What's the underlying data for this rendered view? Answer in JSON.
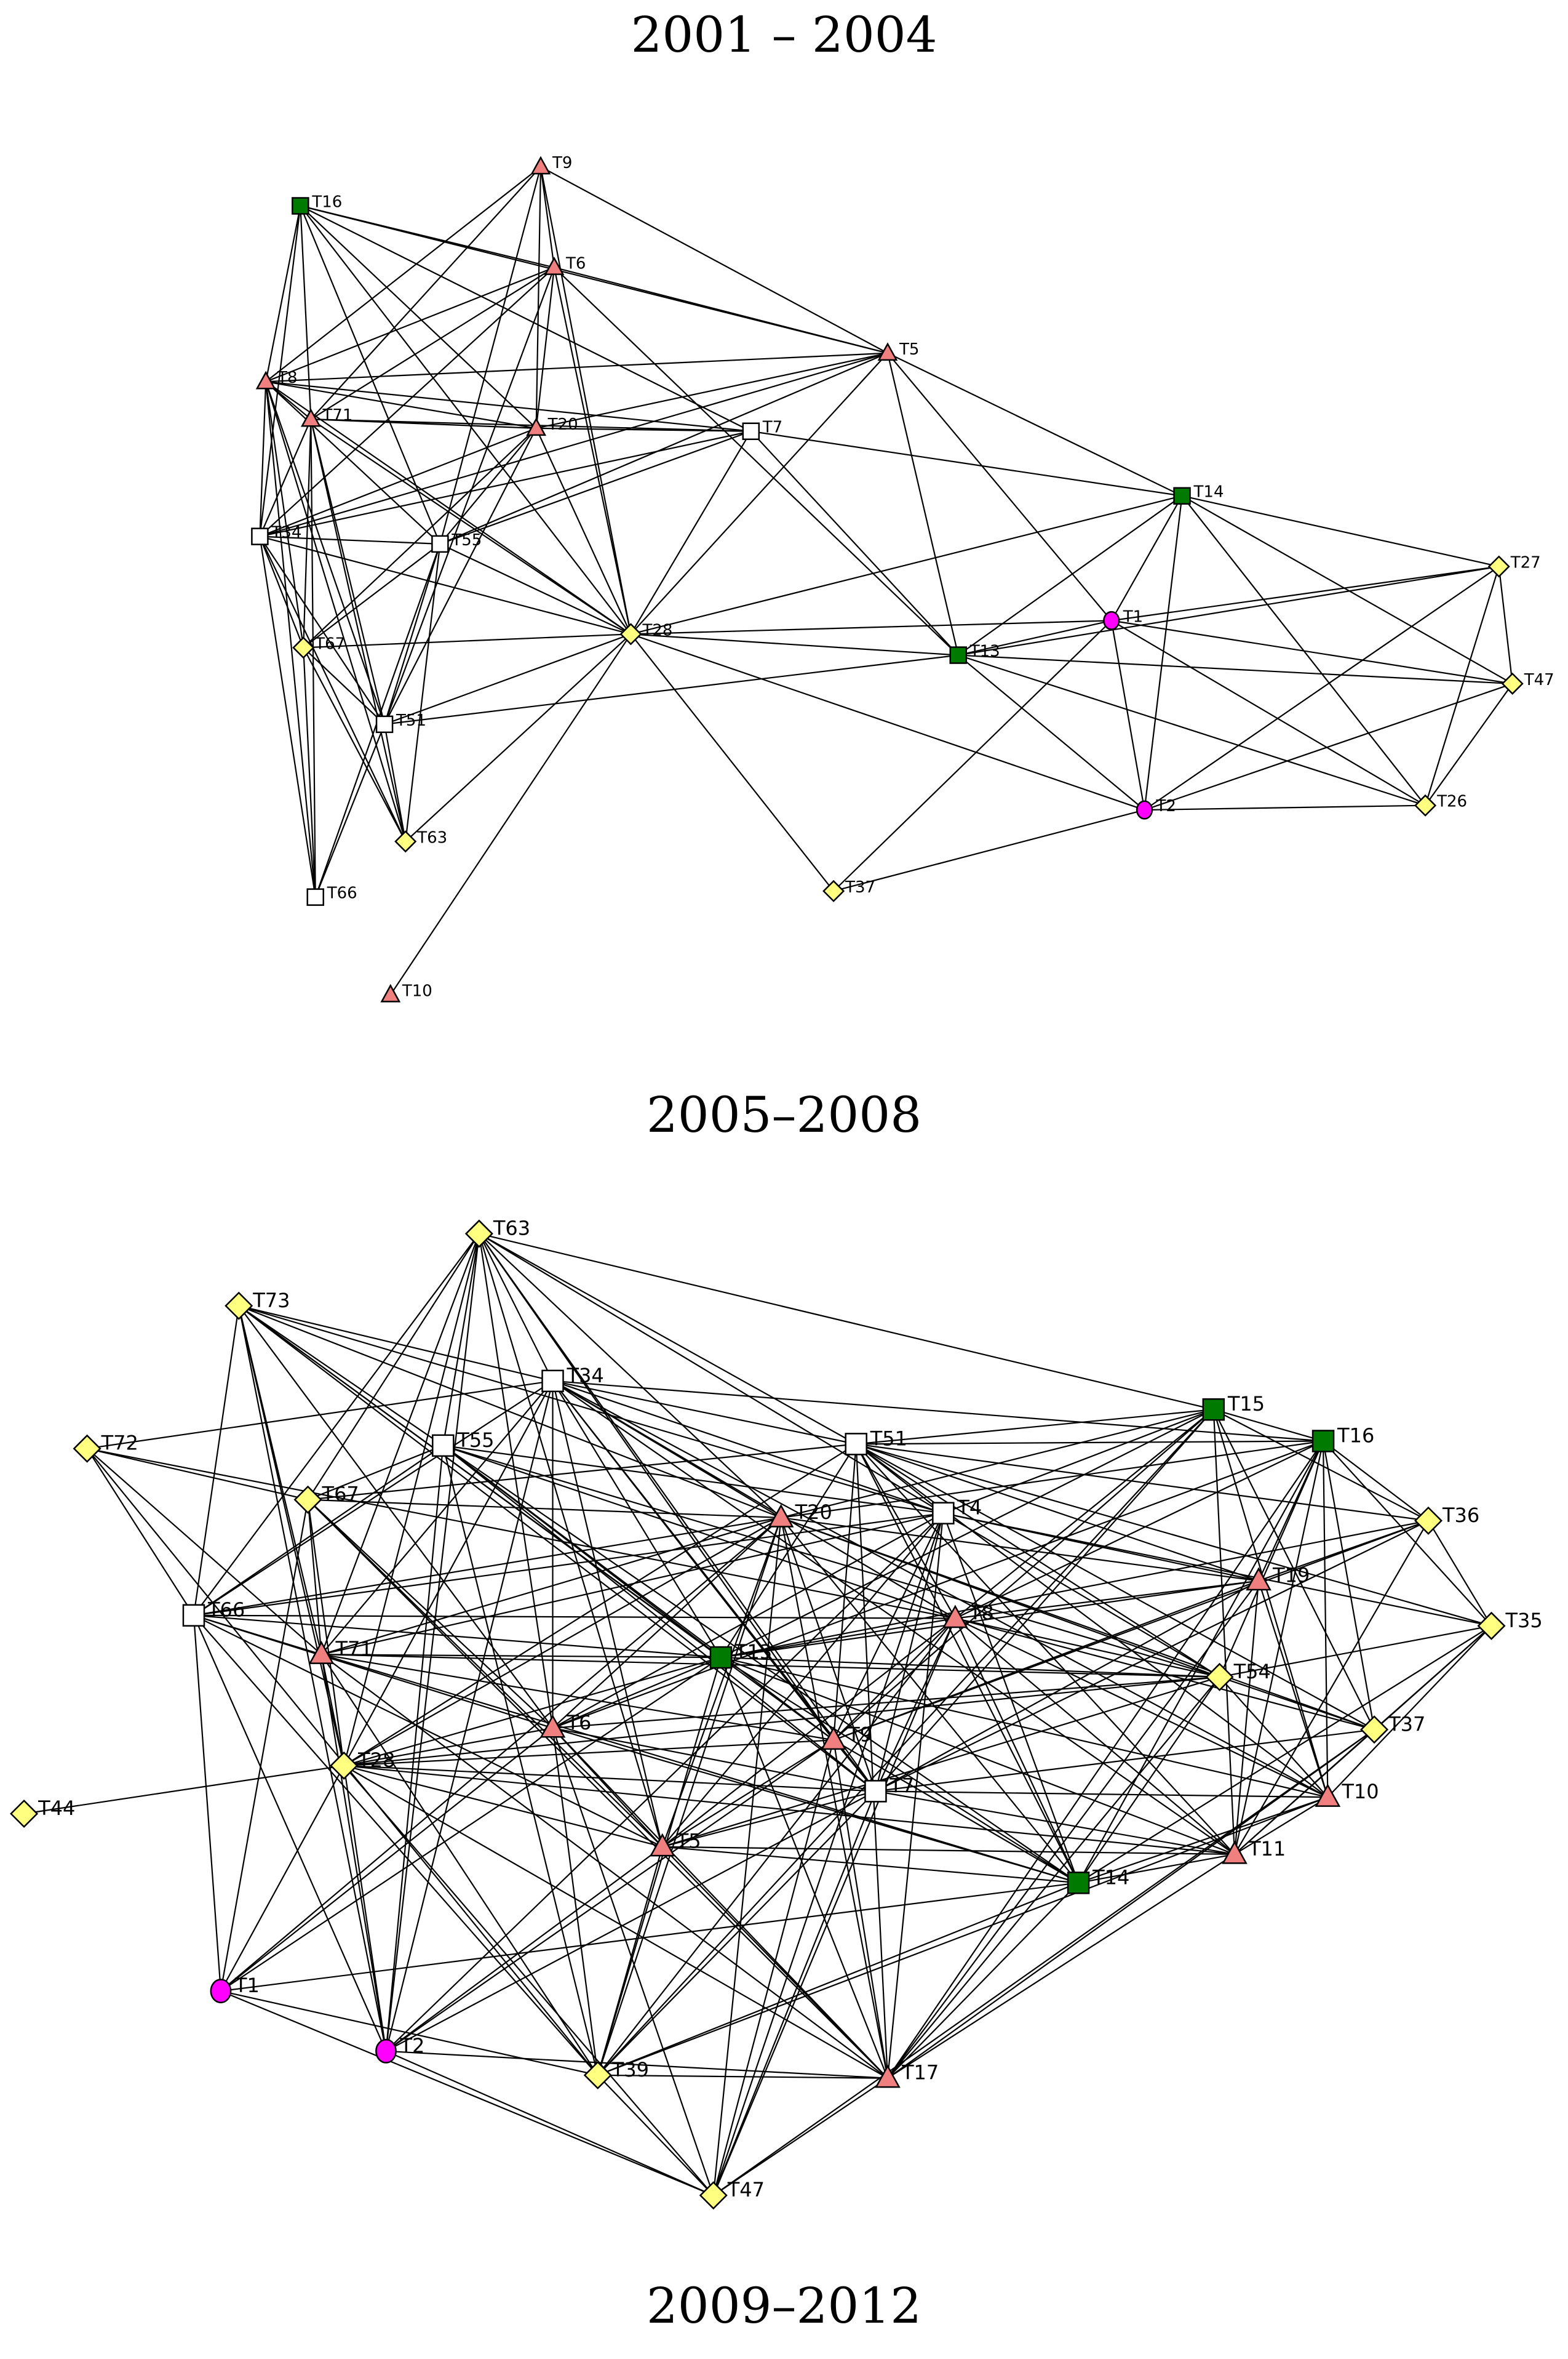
{
  "titles": [
    "2001 – 2004",
    "2005–2008",
    "2009–2012"
  ],
  "colors": {
    "triangle": "#f08080",
    "square_green": "#007a00",
    "square_white": "#ffffff",
    "diamond": "#ffff80",
    "circle": "#ff00ff",
    "stroke": "#000000"
  },
  "networks": [
    {
      "name": "network-2005-2008",
      "nodes": [
        {
          "id": "T9",
          "shape": "triangle"
        },
        {
          "id": "T16",
          "shape": "square-green"
        },
        {
          "id": "T6",
          "shape": "triangle"
        },
        {
          "id": "T5",
          "shape": "triangle"
        },
        {
          "id": "T8",
          "shape": "triangle"
        },
        {
          "id": "T71",
          "shape": "triangle"
        },
        {
          "id": "T20",
          "shape": "triangle"
        },
        {
          "id": "T7",
          "shape": "square-white"
        },
        {
          "id": "T14",
          "shape": "square-green"
        },
        {
          "id": "T34",
          "shape": "square-white"
        },
        {
          "id": "T55",
          "shape": "square-white"
        },
        {
          "id": "T27",
          "shape": "diamond"
        },
        {
          "id": "T1",
          "shape": "circle"
        },
        {
          "id": "T67",
          "shape": "diamond"
        },
        {
          "id": "T28",
          "shape": "diamond"
        },
        {
          "id": "T13",
          "shape": "square-green"
        },
        {
          "id": "T47",
          "shape": "diamond"
        },
        {
          "id": "T51",
          "shape": "square-white"
        },
        {
          "id": "T26",
          "shape": "diamond"
        },
        {
          "id": "T2",
          "shape": "circle"
        },
        {
          "id": "T63",
          "shape": "diamond"
        },
        {
          "id": "T37",
          "shape": "diamond"
        },
        {
          "id": "T66",
          "shape": "square-white"
        },
        {
          "id": "T10",
          "shape": "triangle"
        }
      ]
    },
    {
      "name": "network-2009-2012",
      "nodes": [
        {
          "id": "T63",
          "shape": "diamond"
        },
        {
          "id": "T73",
          "shape": "diamond"
        },
        {
          "id": "T34",
          "shape": "square-white"
        },
        {
          "id": "T15",
          "shape": "square-green"
        },
        {
          "id": "T72",
          "shape": "diamond"
        },
        {
          "id": "T55",
          "shape": "square-white"
        },
        {
          "id": "T51",
          "shape": "square-white"
        },
        {
          "id": "T16",
          "shape": "square-green"
        },
        {
          "id": "T67",
          "shape": "diamond"
        },
        {
          "id": "T20",
          "shape": "triangle"
        },
        {
          "id": "T4",
          "shape": "square-white"
        },
        {
          "id": "T36",
          "shape": "diamond"
        },
        {
          "id": "T19",
          "shape": "triangle"
        },
        {
          "id": "T66",
          "shape": "square-white"
        },
        {
          "id": "T8",
          "shape": "triangle"
        },
        {
          "id": "T35",
          "shape": "diamond"
        },
        {
          "id": "T71",
          "shape": "triangle"
        },
        {
          "id": "T13",
          "shape": "square-green"
        },
        {
          "id": "T54",
          "shape": "diamond"
        },
        {
          "id": "T6",
          "shape": "triangle"
        },
        {
          "id": "T9",
          "shape": "triangle"
        },
        {
          "id": "T37",
          "shape": "diamond"
        },
        {
          "id": "T28",
          "shape": "diamond"
        },
        {
          "id": "T7",
          "shape": "square-white"
        },
        {
          "id": "T10",
          "shape": "triangle"
        },
        {
          "id": "T44",
          "shape": "diamond"
        },
        {
          "id": "T5",
          "shape": "triangle"
        },
        {
          "id": "T11",
          "shape": "triangle"
        },
        {
          "id": "T14",
          "shape": "square-green"
        },
        {
          "id": "T1",
          "shape": "circle"
        },
        {
          "id": "T2",
          "shape": "circle"
        },
        {
          "id": "T39",
          "shape": "diamond"
        },
        {
          "id": "T17",
          "shape": "triangle"
        },
        {
          "id": "T47",
          "shape": "diamond"
        }
      ]
    }
  ]
}
